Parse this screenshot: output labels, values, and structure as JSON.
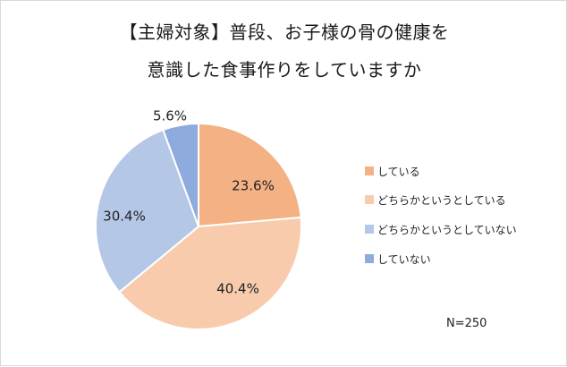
{
  "chart_data": {
    "type": "pie",
    "title_lines": [
      "【主婦対象】普段、お子様の骨の健康を",
      "意識した食事作りをしていますか"
    ],
    "categories": [
      "している",
      "どちらかというとしている",
      "どちらかというとしていない",
      "していない"
    ],
    "values": [
      23.6,
      40.4,
      30.4,
      5.6
    ],
    "labels": [
      "23.6%",
      "40.4%",
      "30.4%",
      "5.6%"
    ],
    "colors": [
      "#F4B183",
      "#F8CBAD",
      "#B4C7E7",
      "#8FAADC"
    ],
    "legend_position": "right",
    "start": "12 o'clock",
    "direction": "clockwise",
    "note": "N=250"
  }
}
